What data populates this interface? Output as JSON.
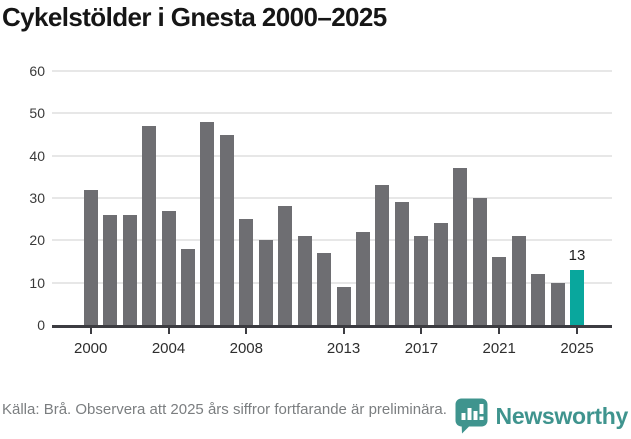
{
  "title": "Cykelstölder i Gnesta 2000–2025",
  "chart_data": {
    "type": "bar",
    "title": "Cykelstölder i Gnesta 2000–2025",
    "categories": [
      2000,
      2001,
      2002,
      2003,
      2004,
      2005,
      2006,
      2007,
      2008,
      2009,
      2010,
      2011,
      2012,
      2013,
      2014,
      2015,
      2016,
      2017,
      2018,
      2019,
      2020,
      2021,
      2022,
      2023,
      2024,
      2025
    ],
    "values": [
      32,
      26,
      26,
      47,
      27,
      18,
      48,
      45,
      25,
      20,
      28,
      21,
      17,
      9,
      22,
      33,
      29,
      21,
      24,
      37,
      30,
      16,
      21,
      12,
      10,
      13
    ],
    "highlight": {
      "category": 2025,
      "value": 13,
      "label": "13"
    },
    "xlabel": "",
    "ylabel": "",
    "ylim": [
      0,
      60
    ],
    "yticks": [
      0,
      10,
      20,
      30,
      40,
      50,
      60
    ],
    "xtick_labels": [
      2000,
      2004,
      2008,
      2013,
      2017,
      2021,
      2025
    ],
    "grid": true,
    "legend": "none"
  },
  "colors": {
    "bar": "#6e6e72",
    "highlight": "#09a79d",
    "gridline": "#e7e7e7",
    "axis": "#3c3c41",
    "brand": "#3f948e"
  },
  "footer": {
    "source_note": "Källa: Brå. Observera att 2025 års siffror fortfarande är preliminära.",
    "brand": "Newsworthy"
  }
}
